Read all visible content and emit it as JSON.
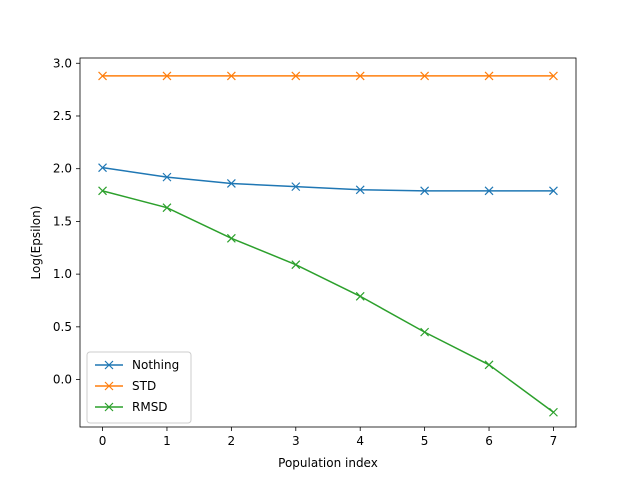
{
  "chart_data": {
    "type": "line",
    "title": "",
    "xlabel": "Population index",
    "ylabel": "Log(Epsilon)",
    "x": [
      0,
      1,
      2,
      3,
      4,
      5,
      6,
      7
    ],
    "xlim": [
      -0.35,
      7.35
    ],
    "ylim": [
      -0.45,
      3.05
    ],
    "xticks": [
      0,
      1,
      2,
      3,
      4,
      5,
      6,
      7
    ],
    "yticks": [
      0.0,
      0.5,
      1.0,
      1.5,
      2.0,
      2.5,
      3.0
    ],
    "ytick_labels": [
      "0.0",
      "0.5",
      "1.0",
      "1.5",
      "2.0",
      "2.5",
      "3.0"
    ],
    "grid": false,
    "legend_position": "lower-left",
    "series": [
      {
        "name": "Nothing",
        "color": "#1f77b4",
        "marker": "x",
        "values": [
          2.01,
          1.92,
          1.86,
          1.83,
          1.8,
          1.79,
          1.79,
          1.79
        ]
      },
      {
        "name": "STD",
        "color": "#ff7f0e",
        "marker": "x",
        "values": [
          2.88,
          2.88,
          2.88,
          2.88,
          2.88,
          2.88,
          2.88,
          2.88
        ]
      },
      {
        "name": "RMSD",
        "color": "#2ca02c",
        "marker": "x",
        "values": [
          1.79,
          1.63,
          1.34,
          1.09,
          0.79,
          0.45,
          0.14,
          -0.31
        ]
      }
    ]
  }
}
